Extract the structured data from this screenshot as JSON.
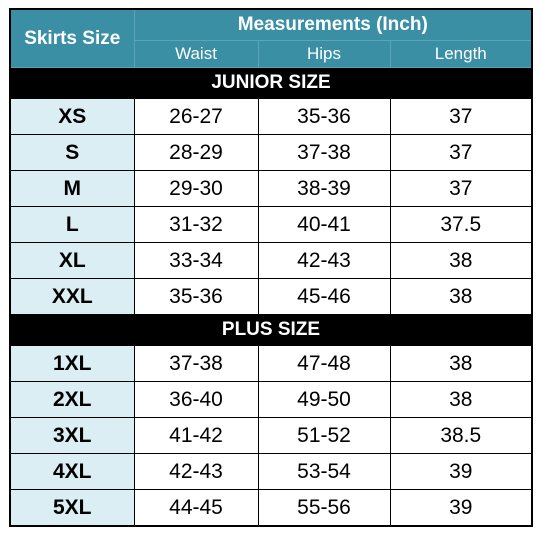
{
  "header": {
    "size_label": "Skirts Size",
    "measurements_label": "Measurements (Inch)",
    "columns": [
      "Waist",
      "Hips",
      "Length"
    ]
  },
  "sections": [
    {
      "title": "JUNIOR SIZE",
      "rows": [
        [
          "XS",
          "26-27",
          "35-36",
          "37"
        ],
        [
          "S",
          "28-29",
          "37-38",
          "37"
        ],
        [
          "M",
          "29-30",
          "38-39",
          "37"
        ],
        [
          "L",
          "31-32",
          "40-41",
          "37.5"
        ],
        [
          "XL",
          "33-34",
          "42-43",
          "38"
        ],
        [
          "XXL",
          "35-36",
          "45-46",
          "38"
        ]
      ]
    },
    {
      "title": "PLUS SIZE",
      "rows": [
        [
          "1XL",
          "37-38",
          "47-48",
          "38"
        ],
        [
          "2XL",
          "36-40",
          "49-50",
          "38"
        ],
        [
          "3XL",
          "41-42",
          "51-52",
          "38.5"
        ],
        [
          "4XL",
          "42-43",
          "53-54",
          "39"
        ],
        [
          "5XL",
          "44-45",
          "55-56",
          "39"
        ]
      ]
    }
  ]
}
